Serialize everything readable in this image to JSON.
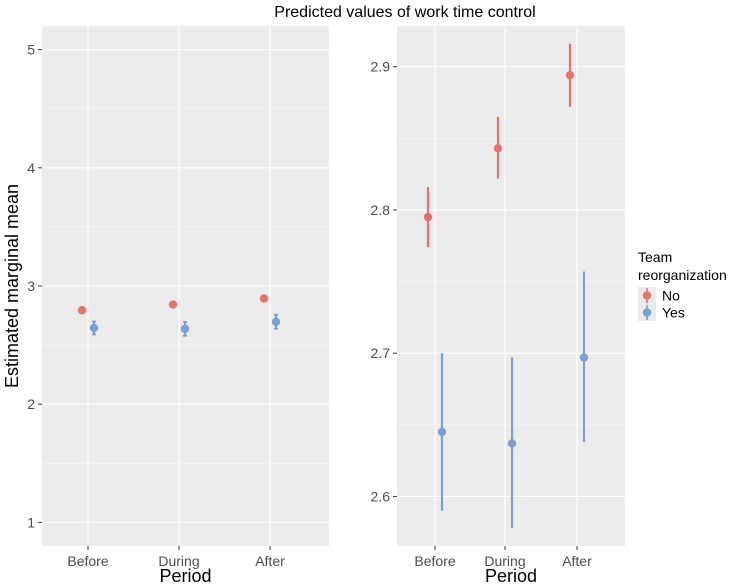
{
  "colors": {
    "No": "#E8736C",
    "Yes": "#7B9ED4"
  },
  "title": "Predicted values of work time control",
  "legend": {
    "title_line1": "Team",
    "title_line2": "reorganization",
    "entries": [
      "No",
      "Yes"
    ]
  },
  "chart_data": [
    {
      "type": "scatter",
      "subtype": "point-errorbar",
      "title": "",
      "xlabel": "Period",
      "ylabel": "Estimated marginal mean",
      "categories": [
        "Before",
        "During",
        "After"
      ],
      "ylim": [
        0.8,
        5.2
      ],
      "yticks": [
        1,
        2,
        3,
        4,
        5
      ],
      "ytick_labels": [
        "1",
        "2",
        "3",
        "4",
        "5"
      ],
      "series": [
        {
          "name": "No",
          "values": [
            2.795,
            2.843,
            2.894
          ],
          "lower": [
            2.774,
            2.822,
            2.872
          ],
          "upper": [
            2.816,
            2.865,
            2.916
          ]
        },
        {
          "name": "Yes",
          "values": [
            2.645,
            2.637,
            2.697
          ],
          "lower": [
            2.59,
            2.578,
            2.638
          ],
          "upper": [
            2.7,
            2.697,
            2.757
          ]
        }
      ]
    },
    {
      "type": "scatter",
      "subtype": "point-errorbar",
      "title": "",
      "xlabel": "Period",
      "ylabel": "",
      "categories": [
        "Before",
        "During",
        "After"
      ],
      "ylim": [
        2.5654,
        2.9284
      ],
      "yticks": [
        2.6,
        2.7,
        2.8,
        2.9
      ],
      "ytick_labels": [
        "2.6",
        "2.7",
        "2.8",
        "2.9"
      ],
      "series": [
        {
          "name": "No",
          "values": [
            2.795,
            2.843,
            2.894
          ],
          "lower": [
            2.774,
            2.822,
            2.872
          ],
          "upper": [
            2.816,
            2.865,
            2.916
          ]
        },
        {
          "name": "Yes",
          "values": [
            2.645,
            2.637,
            2.697
          ],
          "lower": [
            2.59,
            2.578,
            2.638
          ],
          "upper": [
            2.7,
            2.697,
            2.757
          ]
        }
      ]
    }
  ]
}
